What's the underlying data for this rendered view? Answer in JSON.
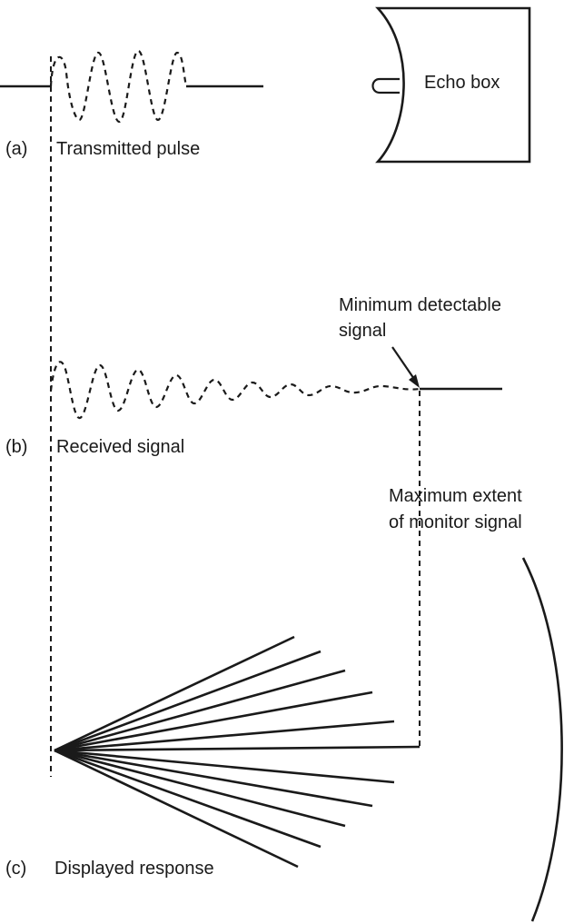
{
  "labels": {
    "echo_box": "Echo box",
    "part_a": "(a)",
    "transmitted_pulse": "Transmitted pulse",
    "minimum_detectable_line1": "Minimum detectable",
    "minimum_detectable_line2": "signal",
    "part_b": "(b)",
    "received_signal": "Received signal",
    "maximum_extent_line1": "Maximum extent",
    "maximum_extent_line2": "of monitor signal",
    "part_c": "(c)",
    "displayed_response": "Displayed response"
  },
  "colors": {
    "ink": "#1a1a1a",
    "background": "#ffffff"
  }
}
